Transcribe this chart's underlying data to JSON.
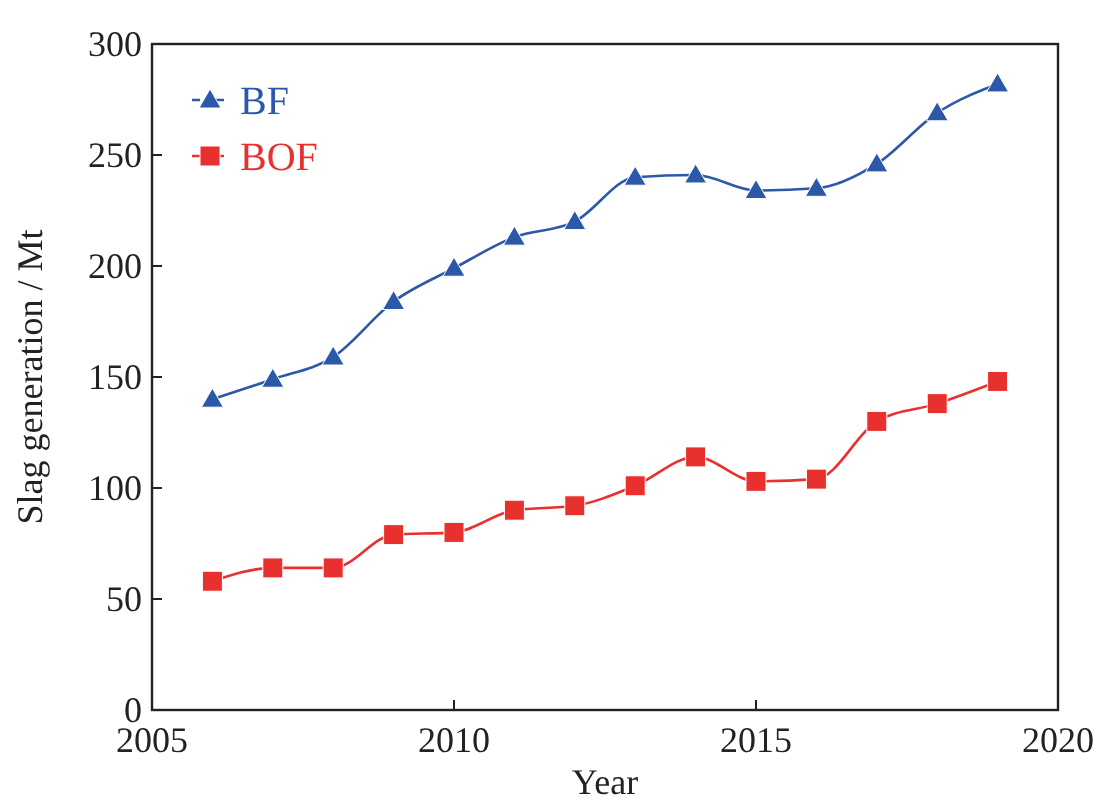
{
  "chart_data": {
    "type": "line",
    "xlabel": "Year",
    "ylabel": "Slag generation / Mt",
    "x": [
      2006,
      2007,
      2008,
      2009,
      2010,
      2011,
      2012,
      2013,
      2014,
      2015,
      2016,
      2017,
      2018,
      2019
    ],
    "series": [
      {
        "name": "BF",
        "color": "#2b58a8",
        "marker": "triangle",
        "values": [
          140,
          149,
          159,
          184,
          199,
          213,
          220,
          240,
          241,
          234,
          235,
          246,
          269,
          282
        ]
      },
      {
        "name": "BOF",
        "color": "#e8302e",
        "marker": "square",
        "values": [
          58,
          64,
          64,
          79,
          80,
          90,
          92,
          101,
          114,
          103,
          104,
          130,
          138,
          148
        ]
      }
    ],
    "xlim": [
      2005,
      2020
    ],
    "xticks": [
      2005,
      2010,
      2015,
      2020
    ],
    "ylim": [
      0,
      300
    ],
    "yticks": [
      0,
      50,
      100,
      150,
      200,
      250,
      300
    ],
    "grid": false,
    "legend": "top left",
    "line_style": "solid"
  }
}
